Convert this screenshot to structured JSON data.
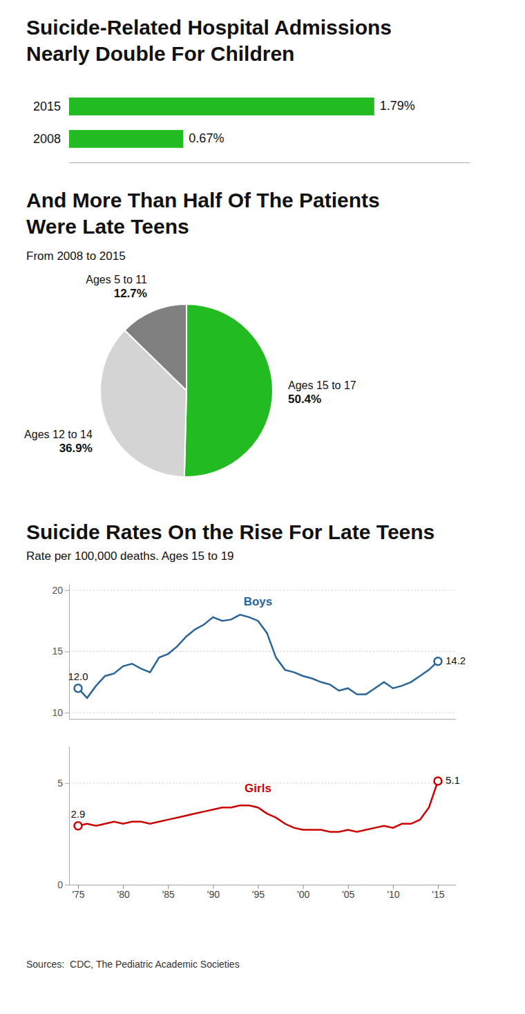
{
  "chart_data": [
    {
      "type": "bar",
      "orientation": "horizontal",
      "title": "Suicide-Related Hospital Admissions\nNearly Double For Children",
      "categories": [
        "2008",
        "2015"
      ],
      "values": [
        0.67,
        1.79
      ],
      "value_labels": [
        "0.67%",
        "1.79%"
      ],
      "data_labels": true,
      "color": "#22bb22",
      "xlim": [
        0,
        2.35
      ],
      "tick_labels": "y"
    },
    {
      "type": "pie",
      "title": "And More Than Half Of The Patients\nWere Late Teens",
      "subtitle": "From 2008 to 2015",
      "categories": [
        "Ages 15 to 17",
        "Ages 12 to 14",
        "Ages 5 to 11"
      ],
      "values": [
        50.4,
        36.9,
        12.7
      ],
      "value_labels": [
        "50.4%",
        "36.9%",
        "12.7%"
      ],
      "data_labels": true,
      "colors": [
        "#22bb22",
        "#d4d4d4",
        "#808080"
      ]
    },
    {
      "type": "line",
      "title": "Suicide Rates On the Rise For Late Teens",
      "subtitle": "Rate per 100,000 deaths. Ages 15 to 19",
      "x": [
        1975,
        1976,
        1977,
        1978,
        1979,
        1980,
        1981,
        1982,
        1983,
        1984,
        1985,
        1986,
        1987,
        1988,
        1989,
        1990,
        1991,
        1992,
        1993,
        1994,
        1995,
        1996,
        1997,
        1998,
        1999,
        2000,
        2001,
        2002,
        2003,
        2004,
        2005,
        2006,
        2007,
        2008,
        2009,
        2010,
        2011,
        2012,
        2013,
        2014,
        2015
      ],
      "series": [
        {
          "name": "Boys",
          "color": "#2a6496",
          "values": [
            12.0,
            11.2,
            12.2,
            13.0,
            13.2,
            13.8,
            14.0,
            13.6,
            13.3,
            14.5,
            14.8,
            15.4,
            16.2,
            16.8,
            17.2,
            17.8,
            17.5,
            17.6,
            18.0,
            17.8,
            17.5,
            16.5,
            14.5,
            13.5,
            13.3,
            13.0,
            12.8,
            12.5,
            12.3,
            11.8,
            12.0,
            11.5,
            11.5,
            12.0,
            12.5,
            12.0,
            12.2,
            12.5,
            13.0,
            13.5,
            14.2
          ]
        }
      ],
      "xlim": [
        1974,
        2017
      ],
      "ylim": [
        9.5,
        20.5
      ],
      "yticks": [
        10,
        15,
        20
      ],
      "grid": true,
      "tick_labels": "y",
      "annotations": [
        {
          "x": 1975,
          "y": 12.0,
          "text": "12.0"
        },
        {
          "x": 2015,
          "y": 14.2,
          "text": "14.2"
        }
      ]
    },
    {
      "type": "line",
      "x": [
        1975,
        1976,
        1977,
        1978,
        1979,
        1980,
        1981,
        1982,
        1983,
        1984,
        1985,
        1986,
        1987,
        1988,
        1989,
        1990,
        1991,
        1992,
        1993,
        1994,
        1995,
        1996,
        1997,
        1998,
        1999,
        2000,
        2001,
        2002,
        2003,
        2004,
        2005,
        2006,
        2007,
        2008,
        2009,
        2010,
        2011,
        2012,
        2013,
        2014,
        2015
      ],
      "series": [
        {
          "name": "Girls",
          "color": "#cc0000",
          "values": [
            2.9,
            3.0,
            2.9,
            3.0,
            3.1,
            3.0,
            3.1,
            3.1,
            3.0,
            3.1,
            3.2,
            3.3,
            3.4,
            3.5,
            3.6,
            3.7,
            3.8,
            3.8,
            3.9,
            3.9,
            3.8,
            3.5,
            3.3,
            3.0,
            2.8,
            2.7,
            2.7,
            2.7,
            2.6,
            2.6,
            2.7,
            2.6,
            2.7,
            2.8,
            2.9,
            2.8,
            3.0,
            3.0,
            3.2,
            3.8,
            5.1
          ]
        }
      ],
      "xlim": [
        1974,
        2017
      ],
      "ylim": [
        0,
        6.8
      ],
      "yticks": [
        0,
        5
      ],
      "xticks": [
        {
          "value": 1975,
          "label": "'75"
        },
        {
          "value": 1980,
          "label": "'80"
        },
        {
          "value": 1985,
          "label": "'85"
        },
        {
          "value": 1990,
          "label": "'90"
        },
        {
          "value": 1995,
          "label": "'95"
        },
        {
          "value": 2000,
          "label": "'00"
        },
        {
          "value": 2005,
          "label": "'05"
        },
        {
          "value": 2010,
          "label": "'10"
        },
        {
          "value": 2015,
          "label": "'15"
        }
      ],
      "grid": true,
      "annotations": [
        {
          "x": 1975,
          "y": 2.9,
          "text": "2.9"
        },
        {
          "x": 2015,
          "y": 5.1,
          "text": "5.1"
        }
      ]
    }
  ],
  "source": "Sources:  CDC, The Pediatric Academic Societies"
}
